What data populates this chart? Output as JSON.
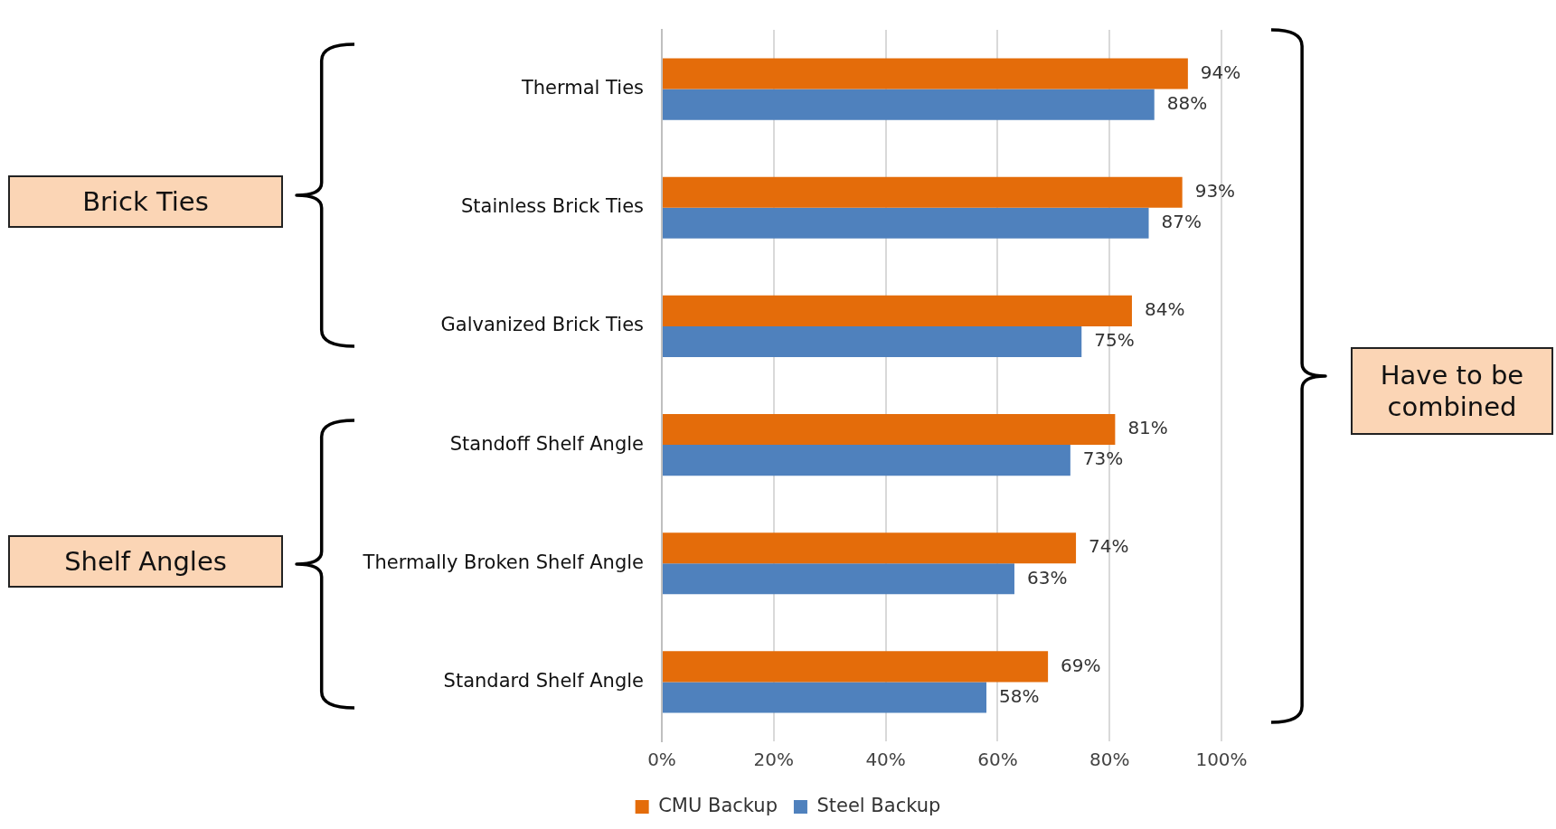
{
  "chart_data": {
    "type": "bar",
    "orientation": "horizontal",
    "categories": [
      "Thermal Ties",
      "Stainless Brick Ties",
      "Galvanized Brick Ties",
      "Standoff Shelf Angle",
      "Thermally Broken Shelf Angle",
      "Standard Shelf Angle"
    ],
    "series": [
      {
        "name": "CMU Backup",
        "color": "#e46c0a",
        "values": [
          94,
          93,
          84,
          81,
          74,
          69
        ],
        "value_labels": [
          "94%",
          "93%",
          "84%",
          "81%",
          "74%",
          "69%"
        ]
      },
      {
        "name": "Steel Backup",
        "color": "#4f81bd",
        "values": [
          88,
          87,
          75,
          73,
          63,
          58
        ],
        "value_labels": [
          "88%",
          "87%",
          "75%",
          "73%",
          "63%",
          "58%"
        ]
      }
    ],
    "xlim": [
      0,
      100
    ],
    "xticks": [
      {
        "value": 0,
        "label": "0%"
      },
      {
        "value": 20,
        "label": "20%"
      },
      {
        "value": 40,
        "label": "40%"
      },
      {
        "value": 60,
        "label": "60%"
      },
      {
        "value": 80,
        "label": "80%"
      },
      {
        "value": 100,
        "label": "100%"
      }
    ],
    "grid": "x",
    "legend": "bottom",
    "annotations": [
      "Brick Ties",
      "Shelf Angles",
      "Have to be combined"
    ]
  }
}
